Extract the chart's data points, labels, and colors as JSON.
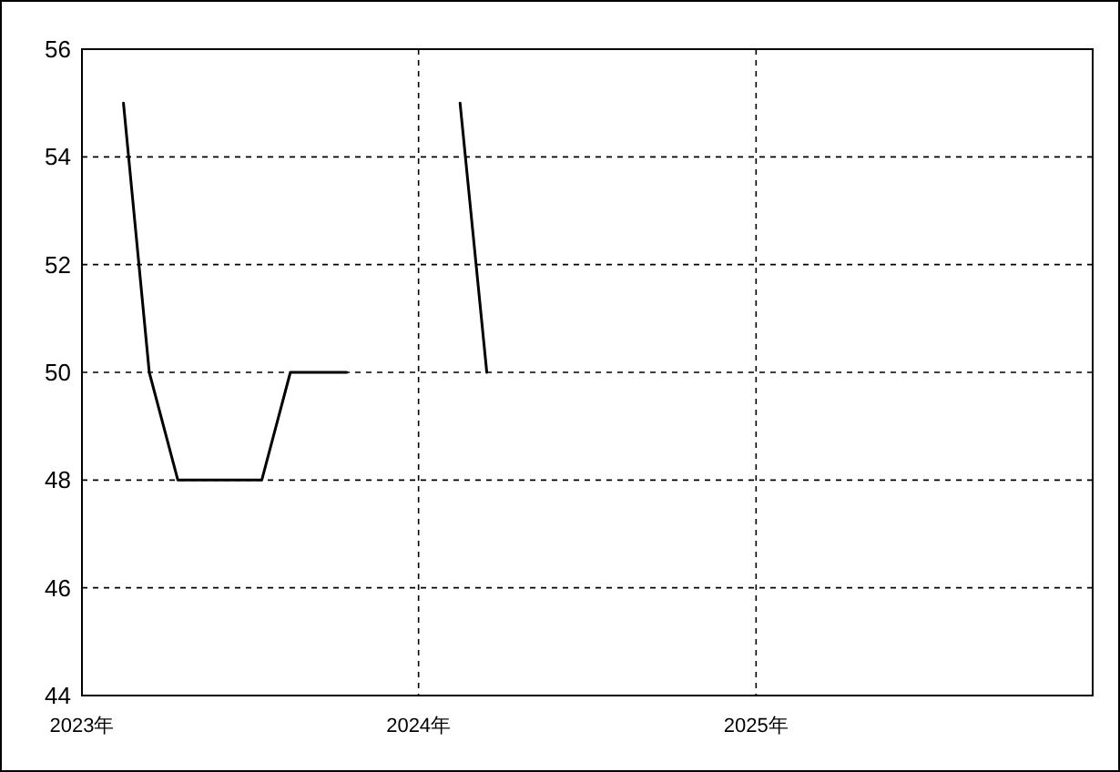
{
  "chart_data": {
    "type": "line",
    "x": [
      "2023-02-15",
      "2023-03-15",
      "2023-04-15",
      "2023-05-15",
      "2023-06-15",
      "2023-07-15",
      "2023-08-15",
      "2023-09-15",
      "2023-10-15",
      "2023-11-15",
      "2023-12-15",
      "2024-01-15",
      "2024-02-15",
      "2024-03-15"
    ],
    "series": [
      {
        "color": "#000000",
        "values": [
          55,
          50,
          48,
          48,
          48,
          48,
          50,
          50,
          50,
          null,
          null,
          null,
          55,
          50
        ]
      }
    ],
    "xlim": [
      "2023-01-01",
      "2026-01-01"
    ],
    "xticks": [
      {
        "value": "2023-01-01",
        "label": "2023年"
      },
      {
        "value": "2024-01-01",
        "label": "2024年"
      },
      {
        "value": "2025-01-01",
        "label": "2025年"
      }
    ],
    "ylim": [
      44,
      56
    ],
    "yticks": [
      44,
      46,
      48,
      50,
      52,
      54,
      56
    ],
    "grid": true,
    "marker": "none",
    "line_style": "solid"
  }
}
